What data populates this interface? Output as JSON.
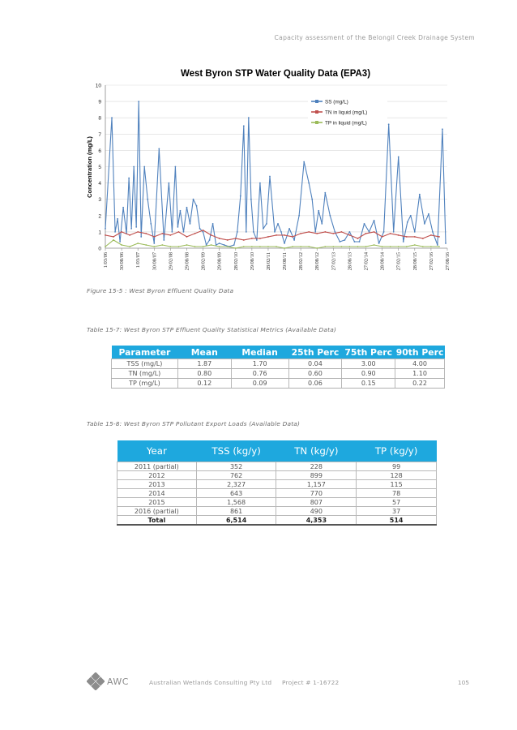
{
  "header": {
    "running_title": "Capacity assessment of the Belongil Creek Drainage System"
  },
  "chart_data": {
    "type": "line",
    "title": "West Byron STP Water Quality Data (EPA3)",
    "ylabel": "Concentration (mg/L)",
    "xlabel": "",
    "ylim": [
      0,
      10
    ],
    "yticks": [
      "0",
      "1",
      "2",
      "3",
      "4",
      "5",
      "6",
      "7",
      "8",
      "9",
      "10"
    ],
    "x_tick_labels": [
      "1/03/06",
      "30/08/06",
      "1/03/07",
      "30/08/07",
      "29/02/08",
      "29/08/08",
      "28/02/09",
      "29/08/09",
      "28/02/10",
      "29/08/10",
      "28/02/11",
      "29/08/11",
      "28/02/12",
      "28/08/12",
      "27/02/13",
      "28/08/13",
      "27/02/14",
      "28/08/14",
      "27/02/15",
      "28/08/15",
      "27/02/16",
      "27/08/16"
    ],
    "grid": "horizontal",
    "legend_position": "top-right",
    "series": [
      {
        "name": "SS (mg/L)",
        "color": "#4f81bd",
        "x": [
          0,
          0.4,
          0.6,
          0.75,
          0.9,
          1.1,
          1.3,
          1.45,
          1.6,
          1.75,
          1.9,
          2.05,
          2.2,
          2.4,
          2.6,
          2.8,
          3.0,
          3.3,
          3.6,
          3.9,
          4.1,
          4.3,
          4.45,
          4.6,
          4.8,
          5.0,
          5.2,
          5.4,
          5.6,
          5.8,
          6.0,
          6.2,
          6.4,
          6.6,
          6.8,
          7.0,
          7.3,
          7.6,
          7.9,
          8.1,
          8.3,
          8.5,
          8.65,
          8.8,
          8.95,
          9.1,
          9.3,
          9.5,
          9.7,
          9.9,
          10.1,
          10.4,
          10.6,
          10.8,
          11.0,
          11.3,
          11.6,
          11.9,
          12.2,
          12.5,
          12.7,
          12.9,
          13.1,
          13.3,
          13.5,
          13.8,
          14.1,
          14.4,
          14.7,
          15.0,
          15.3,
          15.6,
          15.9,
          16.2,
          16.5,
          16.8,
          17.1,
          17.4,
          17.7,
          18.0,
          18.3,
          18.55,
          18.75,
          19.0,
          19.3,
          19.6,
          19.85,
          20.1,
          20.4,
          20.7,
          20.9
        ],
        "y": [
          1.2,
          8.0,
          1.0,
          1.8,
          0.4,
          2.5,
          0.9,
          4.3,
          1.2,
          5.0,
          1.3,
          9.0,
          0.7,
          5.0,
          3.0,
          1.5,
          0.3,
          6.1,
          0.5,
          4.0,
          1.0,
          5.0,
          1.3,
          2.3,
          1.0,
          2.5,
          1.5,
          3.0,
          2.6,
          1.2,
          1.0,
          0.2,
          0.5,
          1.5,
          0.2,
          0.3,
          0.2,
          0.1,
          0.2,
          1.0,
          3.2,
          7.5,
          1.0,
          8.0,
          3.0,
          1.0,
          0.5,
          4.0,
          1.2,
          1.5,
          4.4,
          1.0,
          1.5,
          1.0,
          0.3,
          1.2,
          0.5,
          2.0,
          5.3,
          4.0,
          3.0,
          1.0,
          2.3,
          1.5,
          3.4,
          2.0,
          1.0,
          0.4,
          0.5,
          1.0,
          0.4,
          0.4,
          1.5,
          1.0,
          1.7,
          0.3,
          1.0,
          7.6,
          1.0,
          5.6,
          0.4,
          1.6,
          2.0,
          1.0,
          3.3,
          1.5,
          2.1,
          1.0,
          0.2,
          7.3,
          0.3
        ]
      },
      {
        "name": "TN in liquid (mg/L)",
        "color": "#c0504d",
        "x": [
          0,
          0.5,
          1.0,
          1.5,
          2.0,
          2.5,
          3.0,
          3.5,
          4.0,
          4.5,
          5.0,
          5.5,
          6.0,
          6.5,
          7.0,
          7.5,
          8.0,
          8.5,
          9.0,
          9.5,
          10.0,
          10.5,
          11.0,
          11.5,
          12.0,
          12.5,
          13.0,
          13.5,
          14.0,
          14.5,
          15.0,
          15.5,
          16.0,
          16.5,
          17.0,
          17.5,
          18.0,
          18.5,
          19.0,
          19.5,
          20.0,
          20.5
        ],
        "y": [
          0.8,
          0.7,
          1.0,
          0.8,
          1.0,
          0.9,
          0.7,
          0.9,
          0.8,
          1.0,
          0.7,
          0.9,
          1.1,
          0.8,
          0.6,
          0.5,
          0.6,
          0.5,
          0.6,
          0.6,
          0.7,
          0.8,
          0.8,
          0.7,
          0.9,
          1.0,
          0.9,
          1.0,
          0.9,
          1.0,
          0.8,
          0.6,
          0.9,
          1.0,
          0.7,
          0.9,
          0.8,
          0.7,
          0.7,
          0.6,
          0.8,
          0.7
        ]
      },
      {
        "name": "TP in liquid (mg/L)",
        "color": "#9bbb59",
        "x": [
          0,
          0.5,
          1.0,
          1.5,
          2.0,
          2.5,
          3.0,
          3.5,
          4.0,
          4.5,
          5.0,
          5.5,
          6.0,
          6.5,
          7.0,
          7.5,
          8.0,
          8.5,
          9.0,
          9.5,
          10.0,
          10.5,
          11.0,
          11.5,
          12.0,
          12.5,
          13.0,
          13.5,
          14.0,
          14.5,
          15.0,
          15.5,
          16.0,
          16.5,
          17.0,
          17.5,
          18.0,
          18.5,
          19.0,
          19.5,
          20.0,
          20.5
        ],
        "y": [
          0.1,
          0.5,
          0.2,
          0.1,
          0.3,
          0.2,
          0.1,
          0.2,
          0.1,
          0.1,
          0.2,
          0.1,
          0.1,
          0.2,
          0.1,
          0.1,
          0.0,
          0.1,
          0.1,
          0.1,
          0.1,
          0.1,
          0.0,
          0.1,
          0.1,
          0.1,
          0.0,
          0.1,
          0.1,
          0.1,
          0.1,
          0.1,
          0.1,
          0.2,
          0.1,
          0.1,
          0.1,
          0.1,
          0.2,
          0.1,
          0.1,
          0.1
        ]
      }
    ]
  },
  "figure_caption": "Figure 15-5 : West Byron Effluent Quality Data",
  "table1": {
    "caption": "Table 15-7: West Byron STP Effluent Quality Statistical Metrics (Available Data)",
    "headers": [
      "Parameter",
      "Mean",
      "Median",
      "25th Perc",
      "75th Perc",
      "90th Perc"
    ],
    "rows": [
      [
        "TSS (mg/L)",
        "1.87",
        "1.70",
        "0.04",
        "3.00",
        "4.00"
      ],
      [
        "TN (mg/L)",
        "0.80",
        "0.76",
        "0.60",
        "0.90",
        "1.10"
      ],
      [
        "TP (mg/L)",
        "0.12",
        "0.09",
        "0.06",
        "0.15",
        "0.22"
      ]
    ]
  },
  "table2": {
    "caption": "Table 15-8: West Byron STP Pollutant Export Loads (Available Data)",
    "headers": [
      "Year",
      "TSS (kg/y)",
      "TN (kg/y)",
      "TP (kg/y)"
    ],
    "rows": [
      [
        "2011 (partial)",
        "352",
        "228",
        "99"
      ],
      [
        "2012",
        "762",
        "899",
        "128"
      ],
      [
        "2013",
        "2,327",
        "1,157",
        "115"
      ],
      [
        "2014",
        "643",
        "770",
        "78"
      ],
      [
        "2015",
        "1,568",
        "807",
        "57"
      ],
      [
        "2016 (partial)",
        "861",
        "490",
        "37"
      ]
    ],
    "total": [
      "Total",
      "6,514",
      "4,353",
      "514"
    ]
  },
  "footer": {
    "logo_text": "AWC",
    "company": "Australian Wetlands Consulting Pty Ltd",
    "project": "Project # 1-16722",
    "page": "105"
  }
}
